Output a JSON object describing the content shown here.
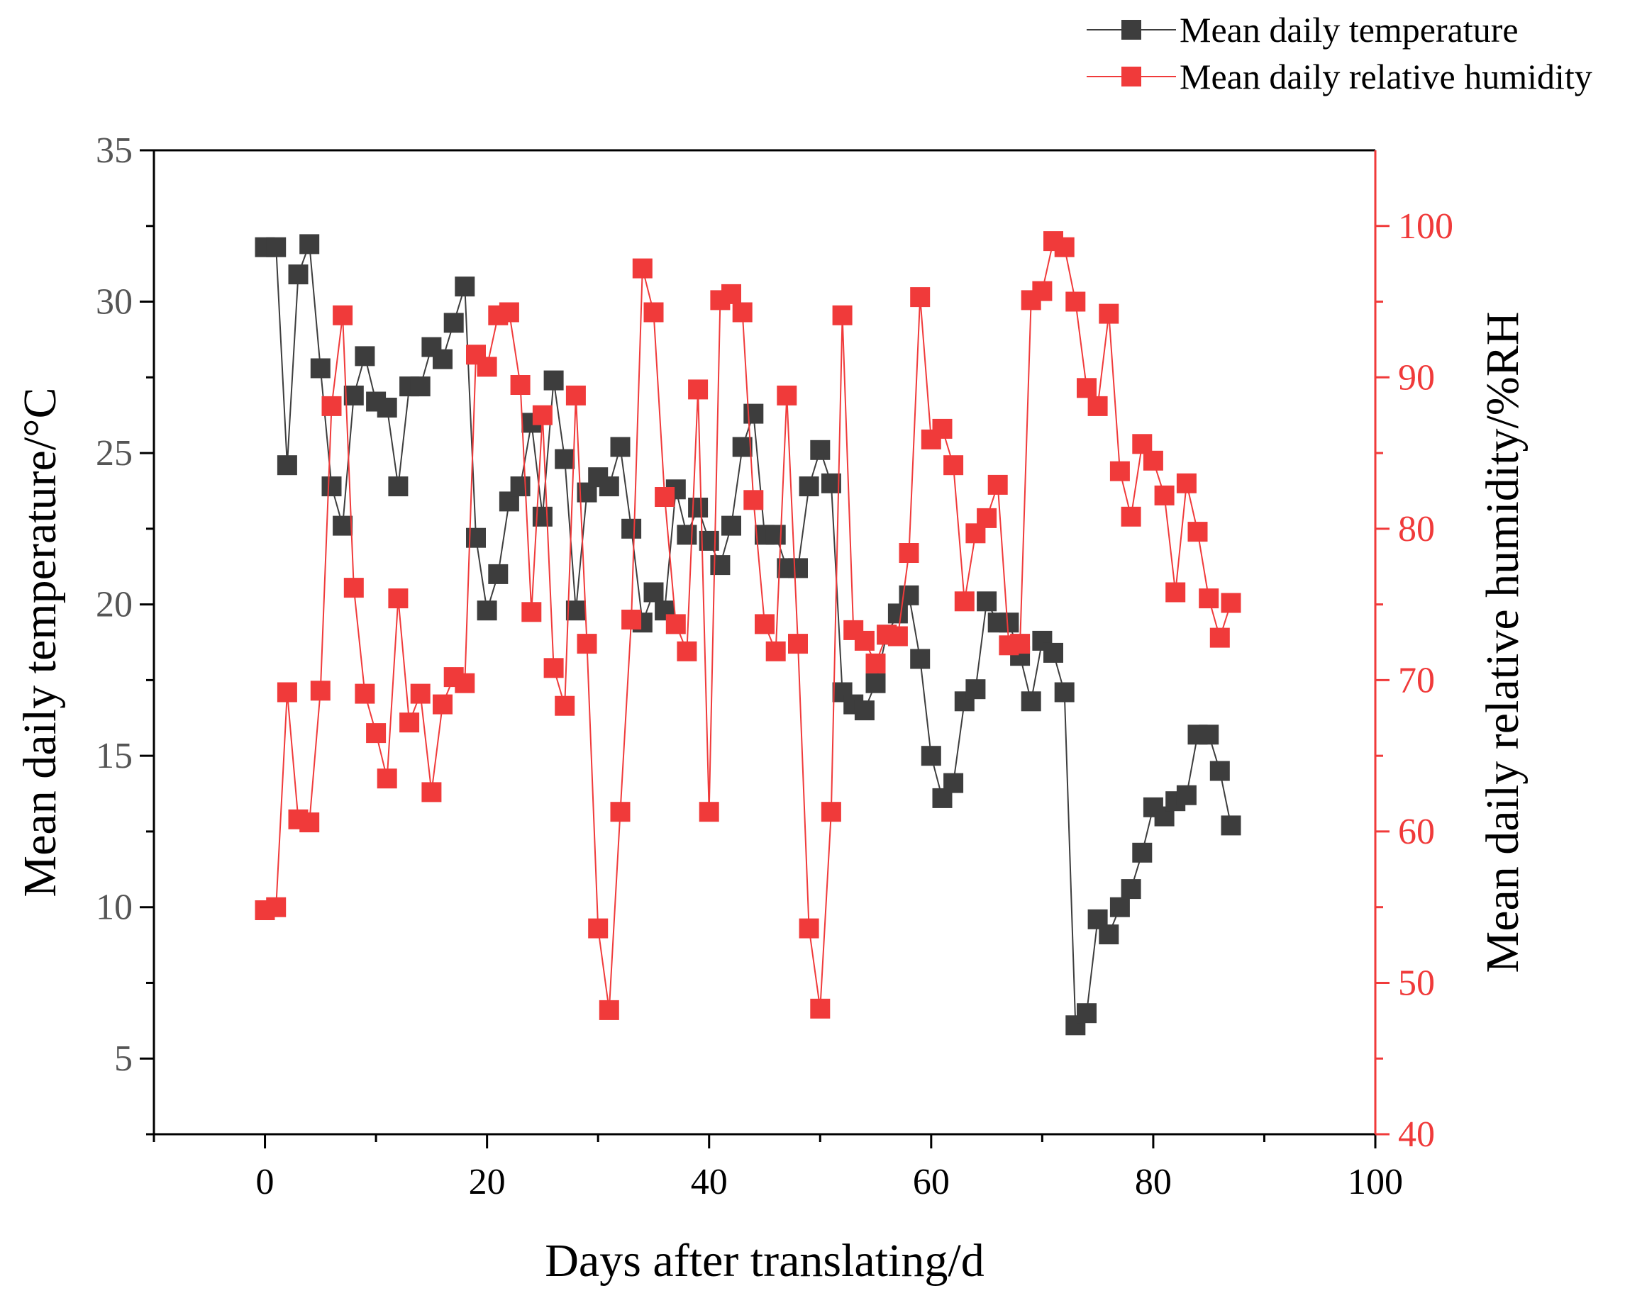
{
  "chart_data": {
    "type": "line",
    "title": "",
    "xlabel": "Days after translating/d",
    "ylabel_left": "Mean daily temperature/°C",
    "ylabel_right": "Mean daily relative humidity/%RH",
    "xlim": [
      -10,
      100
    ],
    "ylim_left": [
      2.5,
      35
    ],
    "ylim_right": [
      40,
      105
    ],
    "x_ticks": [
      0,
      20,
      40,
      60,
      80,
      100
    ],
    "x_tick_labels": [
      "0",
      "20",
      "40",
      "60",
      "80",
      "100"
    ],
    "y_left_ticks": [
      5,
      10,
      15,
      20,
      25,
      30,
      35
    ],
    "y_left_tick_labels": [
      "5",
      "10",
      "15",
      "20",
      "25",
      "30",
      "35"
    ],
    "y_right_ticks": [
      40,
      50,
      60,
      70,
      80,
      90,
      100
    ],
    "y_right_tick_labels": [
      "40",
      "50",
      "60",
      "70",
      "80",
      "90",
      "100"
    ],
    "grid": false,
    "legend_position": "top-right",
    "colors": {
      "temperature": "#3d3d3d",
      "humidity": "#f03a3a",
      "left_axis": "#000000",
      "right_axis": "#f03a3a"
    },
    "series": [
      {
        "name": "Mean daily temperature",
        "axis": "left",
        "x": [
          0,
          1,
          2,
          3,
          4,
          5,
          6,
          7,
          8,
          9,
          10,
          11,
          12,
          13,
          14,
          15,
          16,
          17,
          18,
          19,
          20,
          21,
          22,
          23,
          24,
          25,
          26,
          27,
          28,
          29,
          30,
          31,
          32,
          33,
          34,
          35,
          36,
          37,
          38,
          39,
          40,
          41,
          42,
          43,
          44,
          45,
          46,
          47,
          48,
          49,
          50,
          51,
          52,
          53,
          54,
          55,
          56,
          57,
          58,
          59,
          60,
          61,
          62,
          63,
          64,
          65,
          66,
          67,
          68,
          69,
          70,
          71,
          72,
          73,
          74,
          75,
          76,
          77,
          78,
          79,
          80,
          81,
          82,
          83,
          84,
          85,
          86,
          87
        ],
        "values": [
          31.8,
          31.8,
          24.6,
          30.9,
          31.9,
          27.8,
          23.9,
          22.6,
          26.9,
          28.2,
          26.7,
          26.5,
          23.9,
          27.2,
          27.2,
          28.5,
          28.1,
          29.3,
          30.5,
          22.2,
          19.8,
          21.0,
          23.4,
          23.9,
          26.0,
          22.9,
          27.4,
          24.8,
          19.8,
          23.7,
          24.2,
          23.9,
          25.2,
          22.5,
          19.4,
          20.4,
          19.8,
          23.8,
          22.3,
          23.2,
          22.1,
          21.3,
          22.6,
          25.2,
          26.3,
          22.3,
          22.3,
          21.2,
          21.2,
          23.9,
          25.1,
          24.0,
          17.1,
          16.7,
          16.5,
          17.4,
          19.0,
          19.7,
          20.3,
          18.2,
          15.0,
          13.6,
          14.1,
          16.8,
          17.2,
          20.1,
          19.4,
          19.4,
          18.3,
          16.8,
          18.8,
          18.4,
          17.1,
          6.1,
          6.5,
          9.6,
          9.1,
          10.0,
          10.6,
          11.8,
          13.3,
          13.0,
          13.5,
          13.7,
          15.7,
          15.7,
          14.5,
          12.7
        ]
      },
      {
        "name": "Mean daily relative humidity",
        "axis": "right",
        "x": [
          0,
          1,
          2,
          3,
          4,
          5,
          6,
          7,
          8,
          9,
          10,
          11,
          12,
          13,
          14,
          15,
          16,
          17,
          18,
          19,
          20,
          21,
          22,
          23,
          24,
          25,
          26,
          27,
          28,
          29,
          30,
          31,
          32,
          33,
          34,
          35,
          36,
          37,
          38,
          39,
          40,
          41,
          42,
          43,
          44,
          45,
          46,
          47,
          48,
          49,
          50,
          51,
          52,
          53,
          54,
          55,
          56,
          57,
          58,
          59,
          60,
          61,
          62,
          63,
          64,
          65,
          66,
          67,
          68,
          69,
          70,
          71,
          72,
          73,
          74,
          75,
          76,
          77,
          78,
          79,
          80,
          81,
          82,
          83,
          84,
          85,
          86,
          87
        ],
        "values": [
          54.8,
          55.0,
          69.2,
          60.8,
          60.6,
          69.3,
          88.1,
          94.1,
          76.1,
          69.1,
          66.5,
          63.5,
          75.4,
          67.2,
          69.1,
          62.6,
          68.4,
          70.2,
          69.8,
          91.5,
          90.7,
          94.1,
          94.3,
          89.5,
          74.5,
          87.5,
          70.8,
          68.3,
          88.8,
          72.4,
          53.6,
          48.2,
          61.3,
          74.0,
          97.2,
          94.3,
          82.1,
          73.7,
          71.9,
          89.2,
          61.3,
          95.1,
          95.5,
          94.3,
          81.9,
          73.7,
          71.9,
          88.8,
          72.4,
          53.6,
          48.3,
          61.3,
          94.1,
          73.3,
          72.6,
          71.1,
          73.0,
          72.9,
          78.4,
          95.3,
          85.9,
          86.6,
          84.2,
          75.2,
          79.7,
          80.7,
          82.9,
          72.3,
          72.4,
          95.1,
          95.7,
          99.0,
          98.6,
          95.0,
          89.3,
          88.1,
          94.2,
          83.8,
          80.8,
          85.6,
          84.5,
          82.2,
          75.8,
          83.0,
          79.8,
          75.4,
          72.8,
          75.1
        ]
      }
    ]
  },
  "legend": {
    "items": [
      {
        "label": "Mean daily temperature"
      },
      {
        "label": "Mean daily relative humidity"
      }
    ]
  }
}
